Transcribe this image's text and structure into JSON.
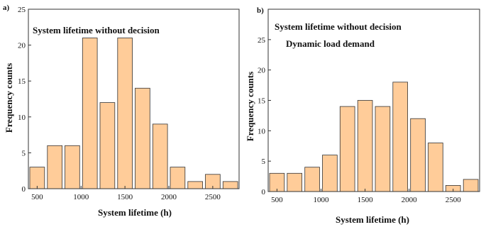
{
  "chart_data": [
    {
      "panel_label": "a)",
      "type": "bar",
      "annotations": [
        "System lifetime without decision"
      ],
      "xlabel": "System lifetime (h)",
      "ylabel": "Frequency counts",
      "xlim": [
        400,
        2800
      ],
      "ylim": [
        0,
        25
      ],
      "xticks": [
        500,
        1000,
        1500,
        2000,
        2500
      ],
      "yticks": [
        0,
        5,
        10,
        15,
        20,
        25
      ],
      "bin_width": 200,
      "bar_color": "#FFCC99",
      "bar_edge_color": "#333333",
      "bins": [
        {
          "center": 500,
          "value": 3
        },
        {
          "center": 700,
          "value": 6
        },
        {
          "center": 900,
          "value": 6
        },
        {
          "center": 1100,
          "value": 21
        },
        {
          "center": 1300,
          "value": 12
        },
        {
          "center": 1500,
          "value": 21
        },
        {
          "center": 1700,
          "value": 14
        },
        {
          "center": 1900,
          "value": 9
        },
        {
          "center": 2100,
          "value": 3
        },
        {
          "center": 2300,
          "value": 1
        },
        {
          "center": 2500,
          "value": 2
        },
        {
          "center": 2700,
          "value": 1
        }
      ]
    },
    {
      "panel_label": "b)",
      "type": "bar",
      "annotations": [
        "System lifetime without decision",
        "Dynamic load demand"
      ],
      "xlabel": "System lifetime (h)",
      "ylabel": "Frequency counts",
      "xlim": [
        400,
        2800
      ],
      "ylim": [
        0,
        30
      ],
      "xticks": [
        500,
        1000,
        1500,
        2000,
        2500
      ],
      "yticks": [
        0,
        5,
        10,
        15,
        20,
        25
      ],
      "bin_width": 200,
      "bar_color": "#FFCC99",
      "bar_edge_color": "#333333",
      "bins": [
        {
          "center": 500,
          "value": 3
        },
        {
          "center": 700,
          "value": 3
        },
        {
          "center": 900,
          "value": 4
        },
        {
          "center": 1100,
          "value": 6
        },
        {
          "center": 1300,
          "value": 14
        },
        {
          "center": 1500,
          "value": 15
        },
        {
          "center": 1700,
          "value": 14
        },
        {
          "center": 1900,
          "value": 18
        },
        {
          "center": 2100,
          "value": 12
        },
        {
          "center": 2300,
          "value": 8
        },
        {
          "center": 2500,
          "value": 1
        },
        {
          "center": 2700,
          "value": 2
        }
      ]
    }
  ]
}
